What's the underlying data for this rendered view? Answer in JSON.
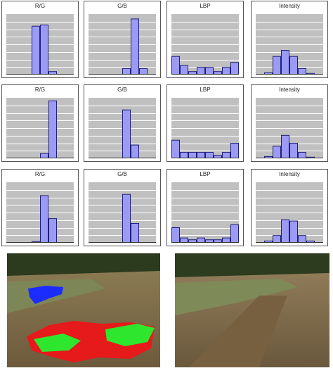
{
  "chart_data": [
    {
      "type": "bar",
      "title": "R/G",
      "values": [
        0,
        0,
        0,
        0.8,
        0.82,
        0.05,
        0,
        0
      ],
      "ylim": [
        0,
        1
      ],
      "grid": true
    },
    {
      "type": "bar",
      "title": "G/B",
      "values": [
        0,
        0,
        0,
        0,
        0.1,
        0.92,
        0.1,
        0
      ],
      "ylim": [
        0,
        1
      ],
      "grid": true
    },
    {
      "type": "bar",
      "title": "LBP",
      "values": [
        0.3,
        0.15,
        0.05,
        0.12,
        0.12,
        0.05,
        0.12,
        0.2
      ],
      "ylim": [
        0,
        1
      ],
      "grid": true
    },
    {
      "type": "bar",
      "title": "Intensity",
      "values": [
        0,
        0.03,
        0.3,
        0.4,
        0.3,
        0.1,
        0.02,
        0
      ],
      "ylim": [
        0,
        1
      ],
      "grid": true
    },
    {
      "type": "bar",
      "title": "R/G",
      "values": [
        0,
        0,
        0,
        0,
        0.08,
        0.95,
        0,
        0
      ],
      "ylim": [
        0,
        1
      ],
      "grid": true
    },
    {
      "type": "bar",
      "title": "G/B",
      "values": [
        0,
        0,
        0,
        0,
        0.8,
        0.22,
        0,
        0
      ],
      "ylim": [
        0,
        1
      ],
      "grid": true
    },
    {
      "type": "bar",
      "title": "LBP",
      "values": [
        0.3,
        0.1,
        0.1,
        0.1,
        0.1,
        0.05,
        0.1,
        0.25
      ],
      "ylim": [
        0,
        1
      ],
      "grid": true
    },
    {
      "type": "bar",
      "title": "Intensity",
      "values": [
        0,
        0.03,
        0.2,
        0.38,
        0.25,
        0.1,
        0.02,
        0
      ],
      "ylim": [
        0,
        1
      ],
      "grid": true
    },
    {
      "type": "bar",
      "title": "R/G",
      "values": [
        0,
        0,
        0,
        0.02,
        0.78,
        0.4,
        0,
        0
      ],
      "ylim": [
        0,
        1
      ],
      "grid": true
    },
    {
      "type": "bar",
      "title": "G/B",
      "values": [
        0,
        0,
        0,
        0,
        0.8,
        0.32,
        0,
        0
      ],
      "ylim": [
        0,
        1
      ],
      "grid": true
    },
    {
      "type": "bar",
      "title": "LBP",
      "values": [
        0.25,
        0.08,
        0.05,
        0.08,
        0.05,
        0.05,
        0.08,
        0.3
      ],
      "ylim": [
        0,
        1
      ],
      "grid": true
    },
    {
      "type": "bar",
      "title": "Intensity",
      "values": [
        0,
        0.03,
        0.12,
        0.38,
        0.36,
        0.12,
        0.03,
        0
      ],
      "ylim": [
        0,
        1
      ],
      "grid": true
    }
  ],
  "colors": {
    "bar_fill": "#9b9bf5",
    "bar_stroke": "#1f1f7a",
    "plot_bg": "#c0c0c0",
    "grid": "#ffffff",
    "label_blue": "#1a2cff",
    "label_green": "#2ee62e",
    "label_red": "#e61a1a"
  },
  "photos": [
    {
      "name": "segmented-terrain-photo",
      "overlay": true
    },
    {
      "name": "original-terrain-photo",
      "overlay": false
    }
  ]
}
